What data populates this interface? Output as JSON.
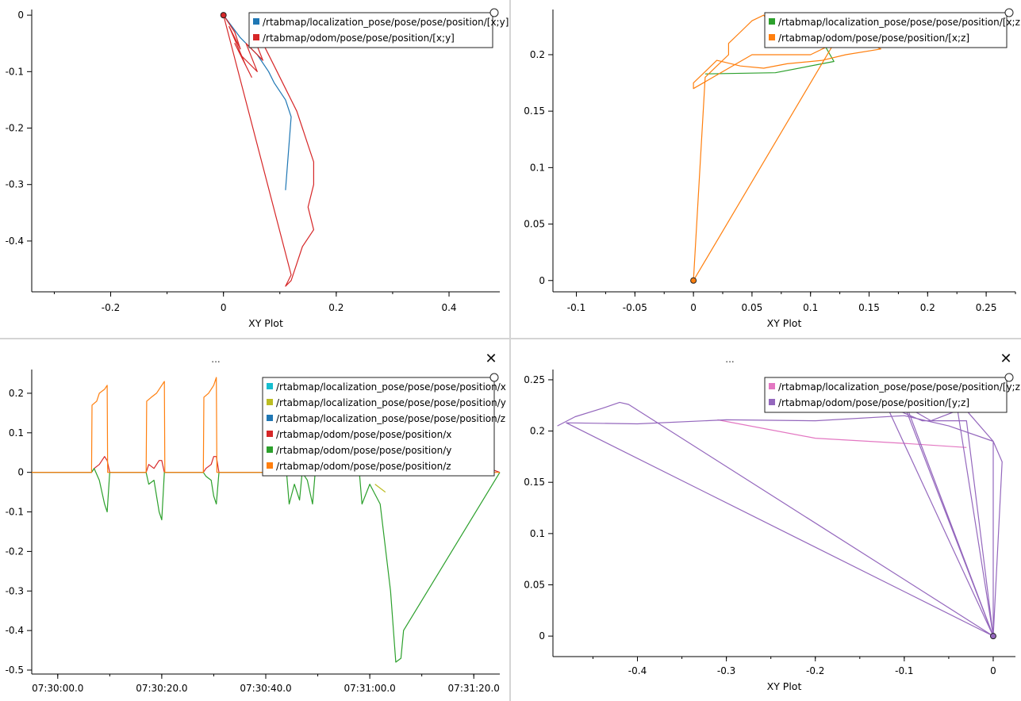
{
  "panels": [
    {
      "id": "top-left",
      "title": "",
      "xlabel": "XY Plot",
      "show_close": false,
      "legend": [
        {
          "label": "/rtabmap/localization_pose/pose/pose/position/[x;y]",
          "color": "#1f77b4"
        },
        {
          "label": "/rtabmap/odom/pose/pose/position/[x;y]",
          "color": "#d62728"
        }
      ],
      "x_ticks": [
        "-0.2",
        "0",
        "0.2",
        "0.4"
      ],
      "y_ticks": [
        "0",
        "-0.1",
        "-0.2",
        "-0.3",
        "-0.4"
      ]
    },
    {
      "id": "top-right",
      "title": "",
      "xlabel": "XY Plot",
      "show_close": false,
      "legend": [
        {
          "label": "/rtabmap/localization_pose/pose/pose/position/[x;z]",
          "color": "#2ca02c"
        },
        {
          "label": "/rtabmap/odom/pose/pose/position/[x;z]",
          "color": "#ff7f0e"
        }
      ],
      "x_ticks": [
        "-0.1",
        "-0.05",
        "0",
        "0.05",
        "0.1",
        "0.15",
        "0.2",
        "0.25"
      ],
      "y_ticks": [
        "0.2",
        "0.15",
        "0.1",
        "0.05",
        "0"
      ]
    },
    {
      "id": "bottom-left",
      "title": "...",
      "xlabel": "",
      "show_close": true,
      "close_glyph": "✕",
      "legend": [
        {
          "label": "/rtabmap/localization_pose/pose/pose/position/x",
          "color": "#17becf"
        },
        {
          "label": "/rtabmap/localization_pose/pose/pose/position/y",
          "color": "#bcbd22"
        },
        {
          "label": "/rtabmap/localization_pose/pose/pose/position/z",
          "color": "#1f77b4"
        },
        {
          "label": "/rtabmap/odom/pose/pose/position/x",
          "color": "#d62728"
        },
        {
          "label": "/rtabmap/odom/pose/pose/position/y",
          "color": "#2ca02c"
        },
        {
          "label": "/rtabmap/odom/pose/pose/position/z",
          "color": "#ff7f0e"
        }
      ],
      "x_ticks": [
        "07:30:00.0",
        "07:30:20.0",
        "07:30:40.0",
        "07:31:00.0",
        "07:31:20.0"
      ],
      "y_ticks": [
        "0.2",
        "0.1",
        "0",
        "-0.1",
        "-0.2",
        "-0.3",
        "-0.4",
        "-0.5"
      ]
    },
    {
      "id": "bottom-right",
      "title": "...",
      "xlabel": "XY Plot",
      "show_close": true,
      "close_glyph": "✕",
      "legend": [
        {
          "label": "/rtabmap/localization_pose/pose/pose/position/[y;z]",
          "color": "#e377c2"
        },
        {
          "label": "/rtabmap/odom/pose/pose/position/[y;z]",
          "color": "#9467bd"
        }
      ],
      "x_ticks": [
        "-0.4",
        "-0.3",
        "-0.2",
        "-0.1",
        "0"
      ],
      "y_ticks": [
        "0.25",
        "0.2",
        "0.15",
        "0.1",
        "0.05",
        "0"
      ]
    }
  ],
  "chart_data": [
    {
      "type": "scatter",
      "title": "",
      "xlabel": "XY Plot",
      "ylabel": "",
      "xlim": [
        -0.34,
        0.49
      ],
      "ylim": [
        -0.49,
        0.01
      ],
      "grid": false,
      "legend_position": "top-right",
      "series": [
        {
          "name": "/rtabmap/localization_pose/pose/pose/position/[x;y]",
          "color": "#1f77b4",
          "x": [
            0,
            0.03,
            0.06,
            0.08,
            0.09,
            0.11,
            0.12,
            0.11
          ],
          "y": [
            0,
            -0.04,
            -0.07,
            -0.1,
            -0.12,
            -0.15,
            -0.18,
            -0.31
          ]
        },
        {
          "name": "/rtabmap/odom/pose/pose/position/[x;y]",
          "color": "#d62728",
          "x": [
            0,
            0.02,
            0.03,
            0.01,
            0.04,
            0.02,
            0.05,
            0.03,
            0.06,
            0.04,
            0.07,
            0.05,
            0.07,
            0.09,
            0.11,
            0.13,
            0.14,
            0.15,
            0.16,
            0.16,
            0.15,
            0.16,
            0.14,
            0.13,
            0.12,
            0.11,
            0.12,
            0.0
          ],
          "y": [
            0,
            -0.03,
            -0.06,
            -0.02,
            -0.09,
            -0.05,
            -0.11,
            -0.07,
            -0.1,
            -0.05,
            -0.08,
            -0.03,
            -0.05,
            -0.09,
            -0.13,
            -0.17,
            -0.2,
            -0.23,
            -0.26,
            -0.3,
            -0.34,
            -0.38,
            -0.41,
            -0.44,
            -0.47,
            -0.48,
            -0.46,
            0.0
          ]
        }
      ]
    },
    {
      "type": "scatter",
      "title": "",
      "xlabel": "XY Plot",
      "ylabel": "",
      "xlim": [
        -0.12,
        0.275
      ],
      "ylim": [
        -0.01,
        0.24
      ],
      "grid": false,
      "legend_position": "top-right",
      "series": [
        {
          "name": "/rtabmap/localization_pose/pose/pose/position/[x;z]",
          "color": "#2ca02c",
          "x": [
            0.01,
            0.07,
            0.12,
            0.11
          ],
          "y": [
            0.183,
            0.184,
            0.194,
            0.212
          ]
        },
        {
          "name": "/rtabmap/odom/pose/pose/position/[x;z]",
          "color": "#ff7f0e",
          "x": [
            0,
            0.01,
            0.02,
            0.03,
            0.03,
            0.04,
            0.05,
            0.06,
            0.07,
            0.09,
            0.11,
            0.13,
            0.15,
            0.16,
            0.13,
            0.11,
            0.08,
            0.06,
            0.04,
            0.02,
            0.01,
            0,
            0,
            0.05,
            0.1,
            0.12,
            0
          ],
          "y": [
            0,
            0.18,
            0.19,
            0.2,
            0.21,
            0.22,
            0.23,
            0.235,
            0.22,
            0.21,
            0.215,
            0.22,
            0.21,
            0.205,
            0.2,
            0.195,
            0.192,
            0.188,
            0.19,
            0.195,
            0.185,
            0.175,
            0.17,
            0.2,
            0.2,
            0.21,
            0
          ]
        }
      ]
    },
    {
      "type": "line",
      "title": "",
      "xlabel": "",
      "ylabel": "",
      "x_unit": "seconds after 07:30:00.0",
      "xlim": [
        -5,
        85
      ],
      "ylim": [
        -0.51,
        0.26
      ],
      "grid": false,
      "legend_position": "top-right",
      "series": [
        {
          "name": "/rtabmap/localization_pose/pose/pose/position/x",
          "color": "#17becf",
          "x": [
            61,
            63
          ],
          "y": [
            0.1,
            0.12
          ]
        },
        {
          "name": "/rtabmap/localization_pose/pose/pose/position/y",
          "color": "#bcbd22",
          "x": [
            61,
            63
          ],
          "y": [
            -0.03,
            -0.05
          ]
        },
        {
          "name": "/rtabmap/localization_pose/pose/pose/position/z",
          "color": "#1f77b4",
          "x": [
            61,
            62.5,
            64
          ],
          "y": [
            0.19,
            0.18,
            0.2
          ]
        },
        {
          "name": "/rtabmap/odom/pose/pose/position/x",
          "color": "#d62728",
          "x": [
            -5,
            6.5,
            7,
            8,
            9,
            9.5,
            10,
            17,
            17.5,
            18.5,
            19.5,
            20,
            20.5,
            28,
            28.5,
            29.5,
            30,
            30.5,
            31,
            44,
            44.5,
            46,
            47,
            48,
            49,
            58,
            59,
            61,
            62,
            63.5,
            64.5,
            85
          ],
          "y": [
            0,
            0,
            0.01,
            0.02,
            0.04,
            0.03,
            0,
            0,
            0.02,
            0.01,
            0.03,
            0.03,
            0,
            0,
            0.01,
            0.02,
            0.04,
            0.04,
            0,
            0,
            0.03,
            0.05,
            0.07,
            0.08,
            0,
            0,
            0.04,
            0.07,
            0.1,
            0.12,
            0.1,
            0
          ]
        },
        {
          "name": "/rtabmap/odom/pose/pose/position/y",
          "color": "#2ca02c",
          "x": [
            -5,
            6.5,
            7,
            8,
            9,
            9.5,
            10,
            17,
            17.5,
            18.5,
            19.5,
            20,
            20.5,
            28,
            28.5,
            29.5,
            30,
            30.5,
            31,
            44,
            44.5,
            45.5,
            46.5,
            47,
            48,
            49,
            49.5,
            58,
            58.5,
            60,
            62,
            64,
            65,
            66,
            66.5,
            85
          ],
          "y": [
            0,
            0,
            0.01,
            -0.02,
            -0.08,
            -0.1,
            0,
            0,
            -0.03,
            -0.02,
            -0.1,
            -0.12,
            0,
            0,
            -0.01,
            -0.02,
            -0.06,
            -0.08,
            0,
            0,
            -0.08,
            -0.03,
            -0.07,
            0,
            -0.02,
            -0.08,
            0,
            0,
            -0.08,
            -0.03,
            -0.08,
            -0.3,
            -0.48,
            -0.47,
            -0.4,
            0
          ]
        },
        {
          "name": "/rtabmap/odom/pose/pose/position/z",
          "color": "#ff7f0e",
          "x": [
            -5,
            6.5,
            6.6,
            7.5,
            8,
            9,
            9.5,
            9.6,
            17,
            17.1,
            18,
            19,
            20,
            20.5,
            20.6,
            28,
            28.1,
            29,
            30,
            30.5,
            30.6,
            44,
            44.1,
            45,
            46,
            47,
            48,
            48.5,
            48.6,
            58,
            58.1,
            60,
            62,
            64,
            64.1,
            85
          ],
          "y": [
            0,
            0,
            0.17,
            0.18,
            0.2,
            0.21,
            0.22,
            0,
            0,
            0.18,
            0.19,
            0.2,
            0.22,
            0.23,
            0,
            0,
            0.19,
            0.2,
            0.22,
            0.24,
            0,
            0,
            0.2,
            0.21,
            0.22,
            0.23,
            0.23,
            0.24,
            0,
            0,
            0.22,
            0.21,
            0.22,
            0.23,
            0,
            0
          ]
        }
      ]
    },
    {
      "type": "scatter",
      "title": "",
      "xlabel": "XY Plot",
      "ylabel": "",
      "xlim": [
        -0.495,
        0.025
      ],
      "ylim": [
        -0.02,
        0.26
      ],
      "grid": false,
      "legend_position": "top-right",
      "series": [
        {
          "name": "/rtabmap/localization_pose/pose/pose/position/[y;z]",
          "color": "#e377c2",
          "x": [
            -0.31,
            -0.2,
            -0.1,
            -0.03
          ],
          "y": [
            0.211,
            0.193,
            0.188,
            0.184
          ]
        },
        {
          "name": "/rtabmap/odom/pose/pose/position/[y;z]",
          "color": "#9467bd",
          "x": [
            -0.49,
            -0.47,
            -0.44,
            -0.42,
            -0.41,
            0.0,
            -0.48,
            -0.4,
            -0.3,
            -0.2,
            -0.1,
            -0.05,
            0,
            0.01,
            0.0,
            -0.1,
            -0.06,
            -0.03,
            0.0,
            0.0,
            -0.04,
            -0.07,
            -0.1,
            0.0,
            -0.12,
            -0.08,
            -0.03,
            0.0
          ],
          "y": [
            0.205,
            0.214,
            0.222,
            0.228,
            0.226,
            0.0,
            0.208,
            0.207,
            0.211,
            0.21,
            0.215,
            0.205,
            0.19,
            0.17,
            0.0,
            0.23,
            0.235,
            0.22,
            0.19,
            0.0,
            0.22,
            0.21,
            0.225,
            0.0,
            0.225,
            0.21,
            0.21,
            0.0
          ]
        }
      ]
    }
  ]
}
